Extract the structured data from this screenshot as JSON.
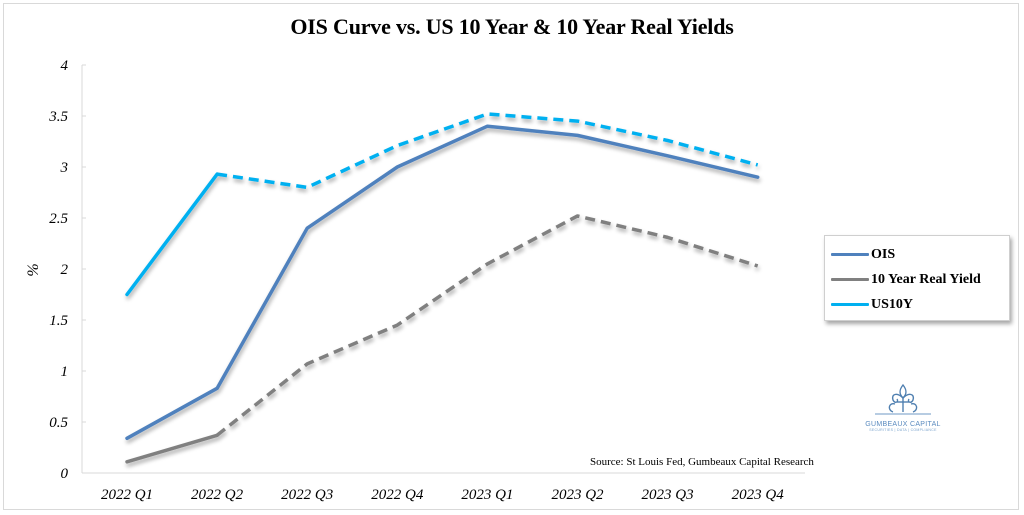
{
  "chart_data": {
    "type": "line",
    "title": "OIS Curve vs. US 10 Year & 10 Year Real Yields",
    "xlabel": "",
    "ylabel": "%",
    "ylim": [
      0,
      4
    ],
    "yticks": [
      0,
      0.5,
      1,
      1.5,
      2,
      2.5,
      3,
      3.5,
      4
    ],
    "ytick_labels": [
      "0",
      "0.5",
      "1",
      "1.5",
      "2",
      "2.5",
      "3",
      "3.5",
      "4"
    ],
    "categories": [
      "2022 Q1",
      "2022 Q2",
      "2022 Q3",
      "2022 Q4",
      "2023 Q1",
      "2023 Q2",
      "2023 Q3",
      "2023 Q4"
    ],
    "grid": false,
    "legend_position": "right",
    "series": [
      {
        "name": "OIS",
        "color": "#4f81bd",
        "values": [
          0.34,
          0.83,
          2.4,
          3.0,
          3.4,
          3.31,
          3.11,
          2.9
        ],
        "dashed_from_index": null
      },
      {
        "name": "10 Year Real Yield",
        "color": "#808080",
        "values": [
          0.11,
          0.37,
          1.07,
          1.45,
          2.05,
          2.52,
          2.31,
          2.03
        ],
        "dashed_from_index": 1
      },
      {
        "name": "US10Y",
        "color": "#00b0f0",
        "values": [
          1.75,
          2.93,
          2.8,
          3.21,
          3.52,
          3.45,
          3.26,
          3.02
        ],
        "dashed_from_index": 1
      }
    ],
    "annotations": [
      "Source: St Louis Fed, Gumbeaux Capital Research"
    ]
  },
  "source_note": "Source: St Louis Fed, Gumbeaux Capital Research",
  "logo": {
    "name": "GUMBEAUX CAPITAL",
    "tagline": "SECURITIES | DATA | COMPLIANCE",
    "icon": "fleur-de-lis-icon"
  }
}
